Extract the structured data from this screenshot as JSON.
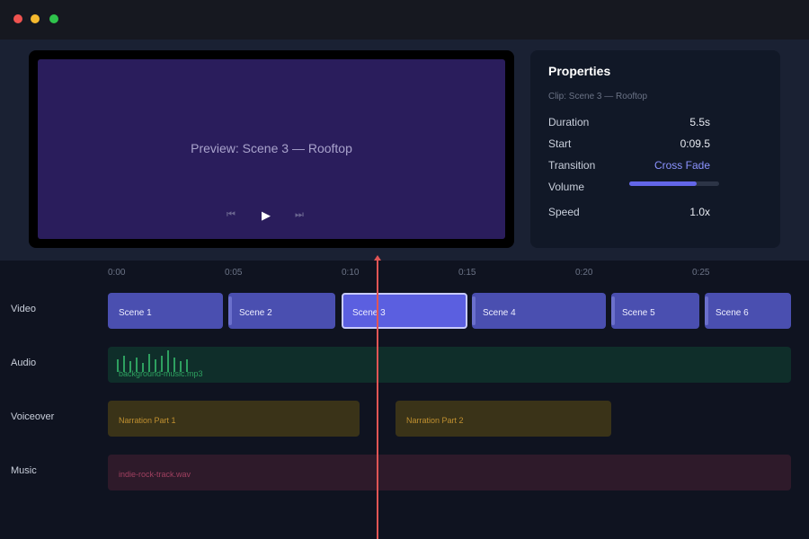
{
  "preview": {
    "title": "Preview: Scene 3 — Rooftop",
    "controls": [
      "⏮",
      "▶",
      "⏭"
    ]
  },
  "properties": {
    "title": "Properties",
    "clip": "Clip: Scene 3 — Rooftop",
    "rows": [
      [
        "Duration",
        "5.5s"
      ],
      [
        "Start",
        "0:09.5"
      ],
      [
        "Transition",
        "Cross Fade"
      ]
    ],
    "volume_label": "Volume",
    "volume": 75,
    "speed": [
      "Speed",
      "1.0x"
    ]
  },
  "timeline": {
    "ticks": [
      "0:00",
      "0:05",
      "0:10",
      "0:15",
      "0:20",
      "0:25"
    ],
    "tracks": [
      "Video",
      "Audio",
      "Voiceover",
      "Music"
    ],
    "video_clips": [
      "Scene 1",
      "Scene 2",
      "Scene 3",
      "Scene 4",
      "Scene 5",
      "Scene 6"
    ],
    "audio_clip": "background-music.mp3",
    "voiceover_clips": [
      "Narration Part 1",
      "Narration Part 2"
    ],
    "music_clip": "indie-rock-track.wav"
  }
}
